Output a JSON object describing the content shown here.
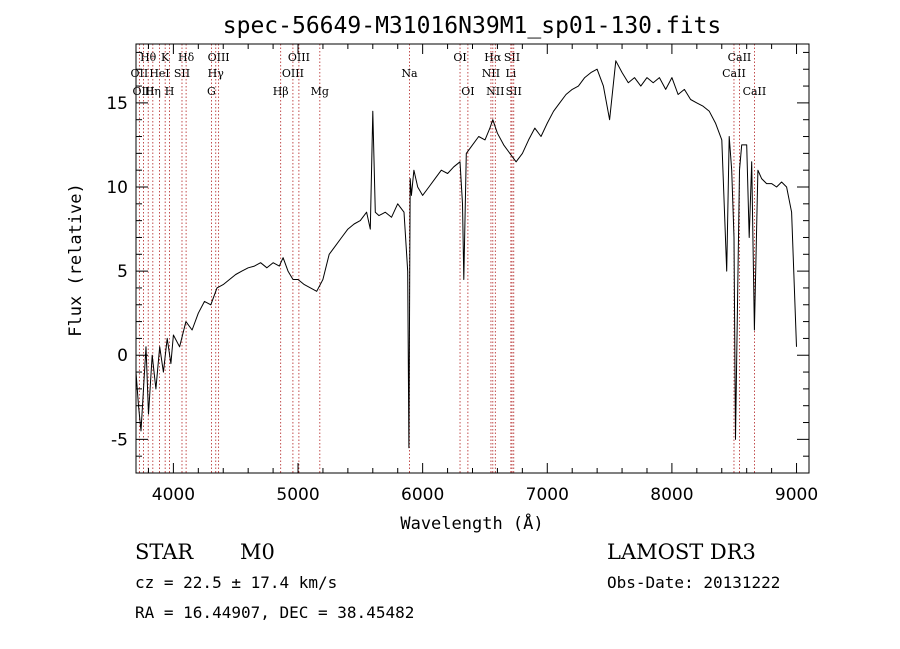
{
  "chart_data": {
    "type": "line",
    "title": "spec-56649-M31016N39M1_sp01-130.fits",
    "xlabel": "Wavelength (Å)",
    "ylabel": "Flux (relative)",
    "xlim": [
      3700,
      9100
    ],
    "ylim": [
      -7,
      18.5
    ],
    "x_ticks": [
      4000,
      5000,
      6000,
      7000,
      8000,
      9000
    ],
    "y_ticks": [
      -5,
      0,
      5,
      10,
      15
    ],
    "grid": false,
    "series": [
      {
        "name": "flux",
        "x": [
          3700,
          3720,
          3740,
          3760,
          3780,
          3800,
          3830,
          3860,
          3890,
          3920,
          3950,
          3980,
          4000,
          4050,
          4100,
          4150,
          4200,
          4250,
          4300,
          4350,
          4400,
          4450,
          4500,
          4550,
          4600,
          4650,
          4700,
          4750,
          4800,
          4850,
          4880,
          4920,
          4960,
          5000,
          5050,
          5100,
          5150,
          5200,
          5250,
          5300,
          5350,
          5400,
          5450,
          5500,
          5550,
          5580,
          5600,
          5620,
          5650,
          5700,
          5750,
          5800,
          5850,
          5880,
          5890,
          5896,
          5900,
          5910,
          5930,
          5960,
          6000,
          6050,
          6100,
          6150,
          6200,
          6250,
          6300,
          6320,
          6330,
          6350,
          6400,
          6450,
          6500,
          6540,
          6563,
          6600,
          6650,
          6700,
          6750,
          6800,
          6850,
          6900,
          6950,
          7000,
          7050,
          7100,
          7150,
          7200,
          7250,
          7300,
          7350,
          7400,
          7450,
          7500,
          7550,
          7600,
          7650,
          7700,
          7750,
          7800,
          7850,
          7900,
          7950,
          8000,
          8050,
          8100,
          8150,
          8200,
          8250,
          8300,
          8350,
          8400,
          8440,
          8460,
          8480,
          8498,
          8510,
          8542,
          8560,
          8600,
          8620,
          8640,
          8662,
          8690,
          8720,
          8760,
          8800,
          8840,
          8880,
          8920,
          8960,
          9000
        ],
        "y": [
          -1,
          -3,
          -4.5,
          -2,
          0.5,
          -3.5,
          0,
          -2,
          0.5,
          -1,
          1,
          -0.5,
          1.2,
          0.5,
          2,
          1.5,
          2.5,
          3.2,
          3,
          4,
          4.2,
          4.5,
          4.8,
          5,
          5.2,
          5.3,
          5.5,
          5.2,
          5.5,
          5.3,
          5.8,
          5,
          4.5,
          4.5,
          4.2,
          4,
          3.8,
          4.5,
          6,
          6.5,
          7,
          7.5,
          7.8,
          8,
          8.5,
          7.5,
          14.5,
          8.5,
          8.3,
          8.5,
          8.2,
          9,
          8.5,
          5,
          -5.5,
          4.5,
          10.5,
          9.5,
          11,
          10,
          9.5,
          10,
          10.5,
          11,
          10.8,
          11.2,
          11.5,
          9,
          4.5,
          12,
          12.5,
          13,
          12.8,
          13.5,
          14,
          13.2,
          12.5,
          12,
          11.5,
          12,
          12.8,
          13.5,
          13,
          13.8,
          14.5,
          15,
          15.5,
          15.8,
          16,
          16.5,
          16.8,
          17,
          16,
          14,
          17.5,
          16.8,
          16.2,
          16.5,
          16,
          16.5,
          16.2,
          16.5,
          15.8,
          16.5,
          15.5,
          15.8,
          15.2,
          15,
          14.8,
          14.5,
          13.8,
          12.8,
          5,
          13,
          11,
          7,
          -5,
          11,
          12.5,
          12.5,
          7,
          11.5,
          1.5,
          11,
          10.5,
          10.2,
          10.2,
          10,
          10.3,
          10,
          8.5,
          0.5
        ]
      }
    ],
    "line_markers": [
      {
        "name": "Hθ",
        "wave": 3798,
        "row": 0
      },
      {
        "name": "OII",
        "wave": 3727,
        "row": 1
      },
      {
        "name": "OIII",
        "wave": 3760,
        "row": 2
      },
      {
        "name": "HeI",
        "wave": 3889,
        "row": 1
      },
      {
        "name": "Hη",
        "wave": 3835,
        "row": 2
      },
      {
        "name": "K",
        "wave": 3934,
        "row": 0
      },
      {
        "name": "H",
        "wave": 3969,
        "row": 2
      },
      {
        "name": "SII",
        "wave": 4069,
        "row": 1
      },
      {
        "name": "Hδ",
        "wave": 4102,
        "row": 0
      },
      {
        "name": "OIII",
        "wave": 4363,
        "row": 0
      },
      {
        "name": "Hγ",
        "wave": 4340,
        "row": 1
      },
      {
        "name": "G",
        "wave": 4305,
        "row": 2
      },
      {
        "name": "Hβ",
        "wave": 4861,
        "row": 2
      },
      {
        "name": "OIII",
        "wave": 4959,
        "row": 1
      },
      {
        "name": "OIII",
        "wave": 5007,
        "row": 0
      },
      {
        "name": "Mg",
        "wave": 5175,
        "row": 2
      },
      {
        "name": "Na",
        "wave": 5894,
        "row": 1
      },
      {
        "name": "OI",
        "wave": 6300,
        "row": 0
      },
      {
        "name": "OI",
        "wave": 6363,
        "row": 2
      },
      {
        "name": "Hα",
        "wave": 6563,
        "row": 0
      },
      {
        "name": "NII",
        "wave": 6548,
        "row": 1
      },
      {
        "name": "NII",
        "wave": 6583,
        "row": 2
      },
      {
        "name": "SII",
        "wave": 6717,
        "row": 0
      },
      {
        "name": "Li",
        "wave": 6708,
        "row": 1
      },
      {
        "name": "SII",
        "wave": 6731,
        "row": 2
      },
      {
        "name": "CaII",
        "wave": 8542,
        "row": 0
      },
      {
        "name": "CaII",
        "wave": 8498,
        "row": 1
      },
      {
        "name": "CaII",
        "wave": 8662,
        "row": 2
      }
    ]
  },
  "info": {
    "class_label": "STAR",
    "subclass": "M0",
    "survey": "LAMOST DR3",
    "redshift_label": "cz = 22.5 ± 17.4 km/s",
    "obs_date_label": "Obs-Date: 20131222",
    "coords_label": "RA =  16.44907, DEC =  38.45482"
  }
}
